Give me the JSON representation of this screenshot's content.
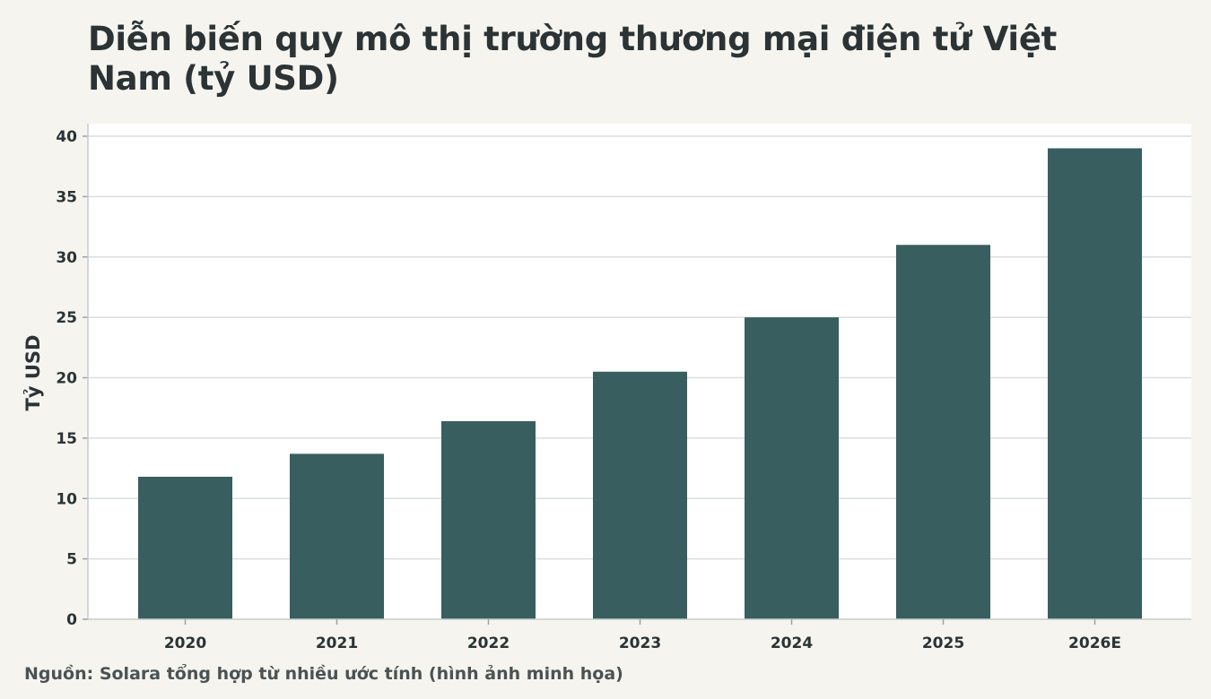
{
  "chart_data": {
    "type": "bar",
    "title": "Diễn biến quy mô thị trường thương mại điện tử Việt Nam (tỷ USD)",
    "xlabel": "",
    "ylabel": "Tỷ USD",
    "categories": [
      "2020",
      "2021",
      "2022",
      "2023",
      "2024",
      "2025",
      "2026E"
    ],
    "values": [
      11.8,
      13.7,
      16.4,
      20.5,
      25,
      31,
      39
    ],
    "ylim": [
      0,
      40
    ],
    "yticks": [
      0,
      5,
      10,
      15,
      20,
      25,
      30,
      35,
      40
    ],
    "grid": true,
    "bar_color": "#385e5f",
    "gridline_color": "#d9dee0",
    "plot_background": "#ffffff",
    "page_background": "#f5f4ef"
  },
  "source": "Nguồn: Solara tổng hợp từ nhiều ước tính (hình ảnh minh họa)"
}
